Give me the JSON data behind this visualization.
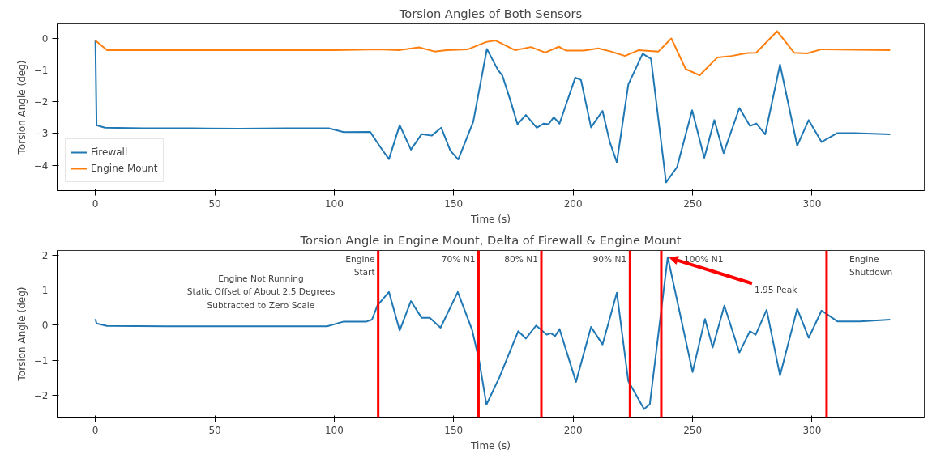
{
  "chart_data": [
    {
      "type": "line",
      "title": "Torsion Angles of Both Sensors",
      "xlabel": "Time (s)",
      "ylabel": "Torsion Angle (deg)",
      "xlim": [
        -16,
        347
      ],
      "xticks": [
        0,
        50,
        100,
        150,
        200,
        250,
        300
      ],
      "ylim": [
        -4.8,
        0.45
      ],
      "yticks": [
        -4,
        -3,
        -2,
        -1,
        0
      ],
      "grid": false,
      "legend": "bottom left",
      "series": [
        {
          "name": "Firewall",
          "color": "#1f77b4",
          "x": [
            0,
            0.5,
            4,
            20,
            40,
            60,
            80,
            97.7,
            104,
            115,
            119.3,
            122.9,
            127.4,
            132.1,
            136.6,
            140.8,
            144.8,
            148.6,
            151.9,
            158.2,
            163.9,
            168.5,
            170.4,
            173.9,
            176.7,
            180.2,
            184.8,
            187.7,
            189.7,
            191.9,
            194.3,
            200.9,
            203.3,
            207.5,
            212.3,
            215.3,
            218.3,
            223.1,
            229.1,
            232.6,
            238.9,
            243.5,
            249.8,
            254.9,
            259.1,
            263.0,
            269.6,
            274.0,
            276.7,
            280.4,
            286.6,
            293.8,
            298.6,
            304.0,
            310.6,
            317.8,
            332.7
          ],
          "values": [
            -0.05,
            -2.74,
            -2.82,
            -2.84,
            -2.84,
            -2.85,
            -2.84,
            -2.84,
            -2.96,
            -2.95,
            -3.43,
            -3.81,
            -2.74,
            -3.51,
            -3.02,
            -3.07,
            -2.82,
            -3.54,
            -3.82,
            -2.63,
            -0.34,
            -1.0,
            -1.18,
            -2.0,
            -2.71,
            -2.42,
            -2.82,
            -2.69,
            -2.71,
            -2.49,
            -2.69,
            -1.24,
            -1.32,
            -2.81,
            -2.29,
            -3.26,
            -3.91,
            -1.46,
            -0.49,
            -0.65,
            -4.54,
            -4.06,
            -2.27,
            -3.77,
            -2.58,
            -3.62,
            -2.2,
            -2.76,
            -2.69,
            -3.03,
            -0.83,
            -3.39,
            -2.58,
            -3.27,
            -2.99,
            -2.99,
            -3.03
          ]
        },
        {
          "name": "Engine Mount",
          "color": "#ff7f0e",
          "x": [
            0,
            4.9,
            50,
            100,
            119,
            127,
            135.5,
            142,
            147,
            156,
            163.6,
            167.4,
            175.8,
            182.3,
            188.3,
            194,
            197,
            204.5,
            210.5,
            215.8,
            221.7,
            227.3,
            235.7,
            241.1,
            247.1,
            253,
            260.3,
            266.3,
            273,
            276.6,
            285.4,
            292.5,
            297.9,
            304,
            332.7
          ],
          "values": [
            -0.07,
            -0.38,
            -0.38,
            -0.38,
            -0.35,
            -0.38,
            -0.29,
            -0.42,
            -0.38,
            -0.35,
            -0.12,
            -0.07,
            -0.38,
            -0.28,
            -0.45,
            -0.27,
            -0.39,
            -0.39,
            -0.32,
            -0.42,
            -0.56,
            -0.38,
            -0.42,
            -0.01,
            -0.97,
            -1.17,
            -0.61,
            -0.56,
            -0.47,
            -0.46,
            0.22,
            -0.46,
            -0.48,
            -0.35,
            -0.38
          ]
        }
      ]
    },
    {
      "type": "line",
      "title": "Torsion Angle in Engine Mount, Delta of Firewall & Engine Mount",
      "xlabel": "Time (s)",
      "ylabel": "Torsion Angle (deg)",
      "xlim": [
        -16,
        347
      ],
      "xticks": [
        0,
        50,
        100,
        150,
        200,
        250,
        300
      ],
      "ylim": [
        -2.63,
        2.14
      ],
      "yticks": [
        -2,
        -1,
        0,
        1,
        2
      ],
      "grid": false,
      "series": [
        {
          "color": "#1f77b4",
          "x": [
            0,
            0.5,
            4.8,
            30,
            60,
            97,
            103.7,
            113.3,
            115.8,
            118.1,
            122.9,
            127.4,
            132.1,
            136.6,
            140,
            144.5,
            151.7,
            157.7,
            160.7,
            163.7,
            169.2,
            177,
            180.2,
            184.5,
            188.9,
            190.7,
            192.5,
            194.3,
            201.2,
            207.5,
            212.3,
            218.3,
            223.1,
            229.7,
            232.1,
            239.6,
            250,
            255.2,
            258.4,
            263.3,
            269.6,
            274,
            276.4,
            281,
            286.6,
            293.8,
            298.6,
            304,
            310.6,
            320,
            332.7
          ],
          "values": [
            0.18,
            0.05,
            -0.02,
            -0.03,
            -0.03,
            -0.03,
            0.1,
            0.1,
            0.16,
            0.57,
            0.95,
            -0.15,
            0.69,
            0.21,
            0.21,
            -0.07,
            0.95,
            -0.13,
            -1.03,
            -2.27,
            -1.48,
            -0.17,
            -0.38,
            -0.01,
            -0.27,
            -0.23,
            -0.31,
            -0.11,
            -1.62,
            -0.05,
            -0.55,
            0.93,
            -1.6,
            -2.4,
            -2.26,
            1.95,
            -1.34,
            0.18,
            -0.64,
            0.56,
            -0.78,
            -0.17,
            -0.27,
            0.44,
            -1.44,
            0.47,
            -0.36,
            0.42,
            0.11,
            0.11,
            0.16
          ]
        }
      ],
      "ref_lines": [
        {
          "axis": "x",
          "value": 118.4,
          "label": "Engine\nStart",
          "color": "#ff0000"
        },
        {
          "axis": "x",
          "value": 160.4,
          "label": "70% N1",
          "color": "#ff0000"
        },
        {
          "axis": "x",
          "value": 186.7,
          "label": "80% N1",
          "color": "#ff0000"
        },
        {
          "axis": "x",
          "value": 223.8,
          "label": "90% N1",
          "color": "#ff0000"
        },
        {
          "axis": "x",
          "value": 236.9,
          "label": "100% N1",
          "color": "#ff0000"
        },
        {
          "axis": "x",
          "value": 306.1,
          "label": "Engine\nShutdown",
          "color": "#ff0000"
        }
      ],
      "annotations": [
        "Engine Not Running\nStatic Offset of About 2.5 Degrees\nSubtracted to Zero Scale",
        {
          "text": "1.95 Peak",
          "x": 239.6,
          "y": 1.95
        }
      ]
    }
  ]
}
